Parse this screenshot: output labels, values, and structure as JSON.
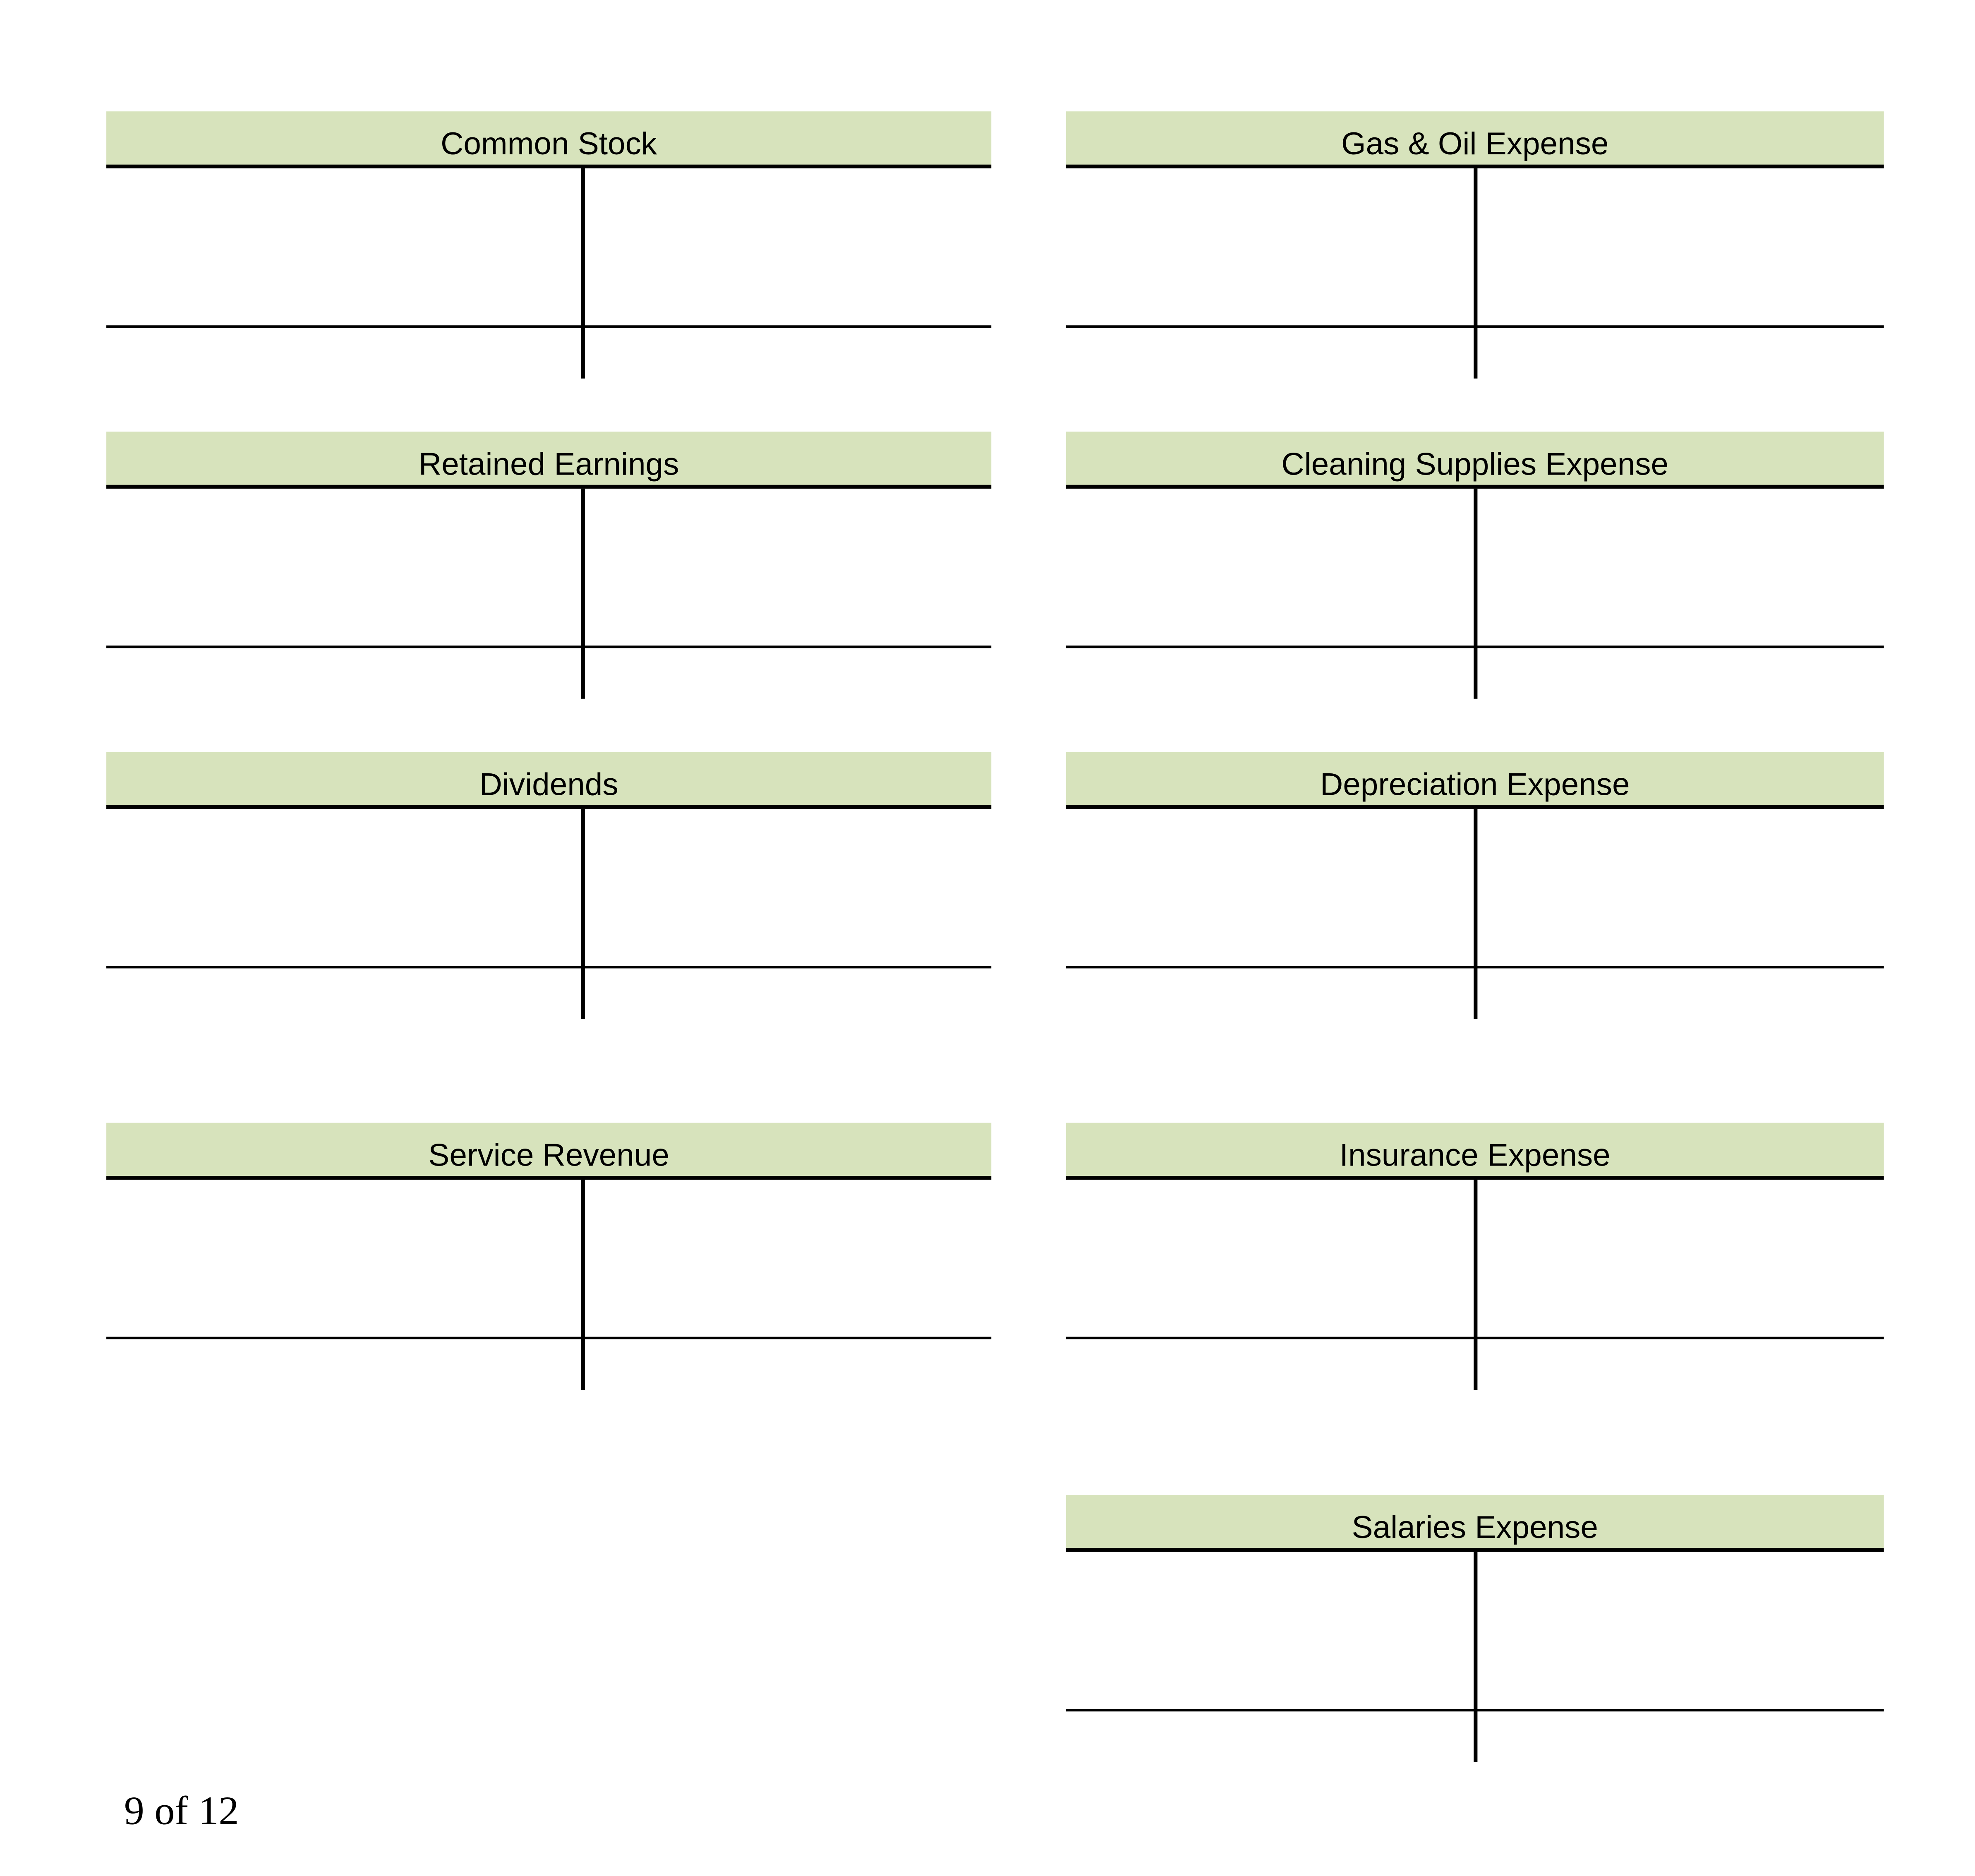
{
  "accounts": [
    {
      "title": "Common Stock"
    },
    {
      "title": "Retained Earnings"
    },
    {
      "title": "Dividends"
    },
    {
      "title": "Service Revenue"
    },
    {
      "title": "Gas & Oil Expense"
    },
    {
      "title": "Cleaning Supplies Expense"
    },
    {
      "title": "Depreciation Expense"
    },
    {
      "title": "Insurance Expense"
    },
    {
      "title": "Salaries Expense"
    }
  ],
  "footer": {
    "page_number": "9 of 12"
  },
  "colors": {
    "header_fill": "#d7e3bc",
    "lines": "#000000"
  }
}
